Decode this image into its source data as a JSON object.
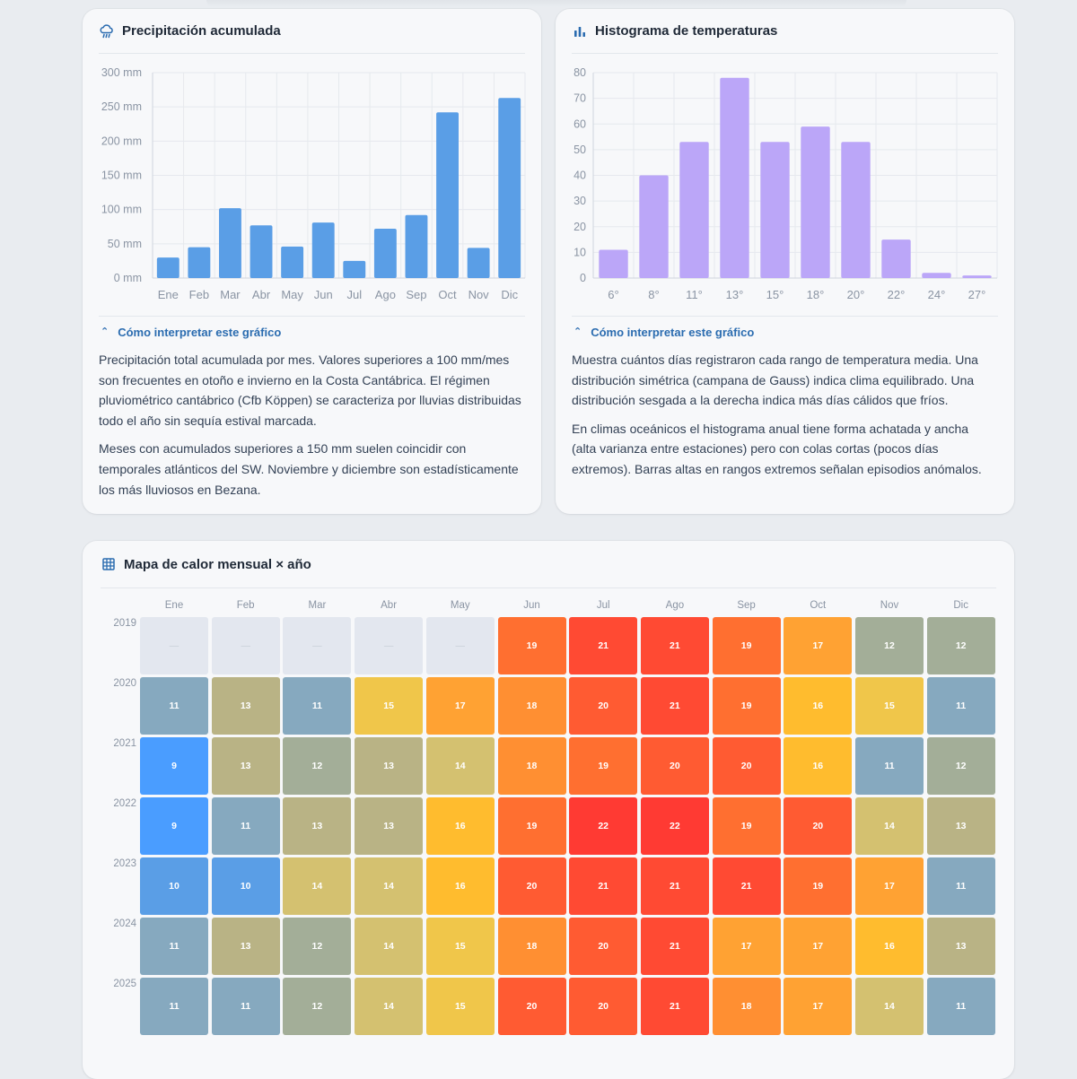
{
  "precipitation": {
    "title": "Precipitación acumulada",
    "interpret_label": "Cómo interpretar este gráfico",
    "paragraphs": [
      "Precipitación total acumulada por mes. Valores superiores a 100 mm/mes son frecuentes en otoño e invierno en la Costa Cantábrica. El régimen pluviométrico cantábrico (Cfb Köppen) se caracteriza por lluvias distribuidas todo el año sin sequía estival marcada.",
      "Meses con acumulados superiores a 150 mm suelen coincidir con temporales atlánticos del SW. Noviembre y diciembre son estadísticamente los más lluviosos en Bezana."
    ]
  },
  "histogram": {
    "title": "Histograma de temperaturas",
    "interpret_label": "Cómo interpretar este gráfico",
    "paragraphs": [
      "Muestra cuántos días registraron cada rango de temperatura media. Una distribución simétrica (campana de Gauss) indica clima equilibrado. Una distribución sesgada a la derecha indica más días cálidos que fríos.",
      "En climas oceánicos el histograma anual tiene forma achatada y ancha (alta varianza entre estaciones) pero con colas cortas (pocos días extremos). Barras altas en rangos extremos señalan episodios anómalos."
    ]
  },
  "heatmap": {
    "title": "Mapa de calor mensual × año",
    "empty_symbol": "—"
  },
  "chart_data": [
    {
      "type": "bar",
      "title": "Precipitación acumulada",
      "categories": [
        "Ene",
        "Feb",
        "Mar",
        "Abr",
        "May",
        "Jun",
        "Jul",
        "Ago",
        "Sep",
        "Oct",
        "Nov",
        "Dic"
      ],
      "values": [
        30,
        45,
        102,
        77,
        46,
        81,
        25,
        72,
        92,
        242,
        44,
        263
      ],
      "ylim": [
        0,
        300
      ],
      "yticks": [
        0,
        50,
        100,
        150,
        200,
        250,
        300
      ],
      "y_unit": " mm",
      "color": "#5a9ee6",
      "grid": true
    },
    {
      "type": "bar",
      "title": "Histograma de temperaturas",
      "categories": [
        "6°",
        "8°",
        "11°",
        "13°",
        "15°",
        "18°",
        "20°",
        "22°",
        "24°",
        "27°"
      ],
      "values": [
        11,
        40,
        53,
        78,
        53,
        59,
        53,
        15,
        2,
        1
      ],
      "ylim": [
        0,
        80
      ],
      "yticks": [
        0,
        10,
        20,
        30,
        40,
        50,
        60,
        70,
        80
      ],
      "y_unit": "",
      "color": "#bba6f8",
      "grid": true
    },
    {
      "type": "heatmap",
      "title": "Mapa de calor mensual × año",
      "columns": [
        "Ene",
        "Feb",
        "Mar",
        "Abr",
        "May",
        "Jun",
        "Jul",
        "Ago",
        "Sep",
        "Oct",
        "Nov",
        "Dic"
      ],
      "rows": [
        "2019",
        "2020",
        "2021",
        "2022",
        "2023",
        "2024",
        "2025"
      ],
      "values": [
        [
          null,
          null,
          null,
          null,
          null,
          19,
          21,
          21,
          19,
          17,
          12,
          12
        ],
        [
          11,
          13,
          11,
          15,
          17,
          18,
          20,
          21,
          19,
          16,
          15,
          11
        ],
        [
          9,
          13,
          12,
          13,
          14,
          18,
          19,
          20,
          20,
          16,
          11,
          12
        ],
        [
          9,
          11,
          13,
          13,
          16,
          19,
          22,
          22,
          19,
          20,
          14,
          13
        ],
        [
          10,
          10,
          14,
          14,
          16,
          20,
          21,
          21,
          21,
          19,
          17,
          11
        ],
        [
          11,
          13,
          12,
          14,
          15,
          18,
          20,
          21,
          17,
          17,
          16,
          13
        ],
        [
          11,
          11,
          12,
          14,
          15,
          20,
          20,
          21,
          18,
          17,
          14,
          11
        ]
      ],
      "color_scale": {
        "9": "#4a9dff",
        "10": "#5a9ee6",
        "11": "#86a9bf",
        "12": "#a3ae98",
        "13": "#b9b385",
        "14": "#d4c170",
        "15": "#f0c64a",
        "16": "#ffbc2e",
        "17": "#ffa233",
        "18": "#ff8f32",
        "19": "#ff6f30",
        "20": "#ff5b32",
        "21": "#ff4a33",
        "22": "#ff3a33",
        "empty": "#e3e7ef"
      }
    }
  ]
}
